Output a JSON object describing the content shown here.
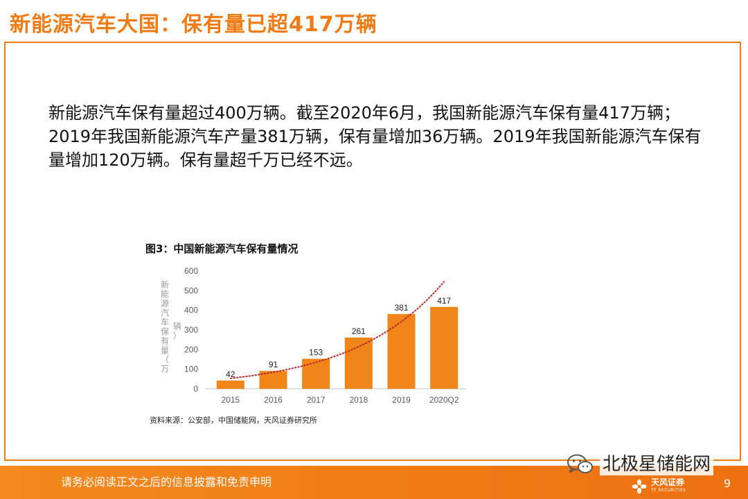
{
  "slide": {
    "title": "新能源汽车大国：保有量已超417万辆",
    "paragraph": "新能源汽车保有量超过400万辆。截至2020年6月，我国新能源汽车保有量417万辆；2019年我国新能源汽车产量381万辆，保有量增加36万辆。2019年我国新能源汽车保有量增加120万辆。保有量超千万已经不远。",
    "figure_caption": "图3：中国新能源汽车保有量情况",
    "figure_source": "资料来源：公安部，中国储能网，天风证券研究所"
  },
  "chart_data": {
    "type": "bar",
    "categories": [
      "2015",
      "2016",
      "2017",
      "2018",
      "2019",
      "2020Q2"
    ],
    "values": [
      42,
      91,
      153,
      261,
      381,
      417
    ],
    "value_labels": [
      "42",
      "91",
      "153",
      "261",
      "381",
      "417"
    ],
    "ylabel": "新能源汽车保有量（万辆）",
    "ylim": [
      0,
      600
    ],
    "yticks": [
      0,
      100,
      200,
      300,
      400,
      500,
      600
    ],
    "ytick_labels": [
      "0",
      "100",
      "200",
      "300",
      "400",
      "500",
      "600"
    ],
    "trendline": "exponential",
    "trendline_style": "dotted",
    "bar_color": "#f0861a",
    "trend_color": "#c0262c",
    "grid": false
  },
  "footer": {
    "disclaimer": "请务必阅读正文之后的信息披露和免责申明",
    "wechat_account": "北极星储能网",
    "wechat_icon": "wechat-icon",
    "brand_name": "天风证券",
    "brand_en": "TF SECURITIES",
    "page_number": "9"
  },
  "colors": {
    "accent": "#f07a14",
    "footer_bg": "#f07a14",
    "text": "#111111"
  }
}
